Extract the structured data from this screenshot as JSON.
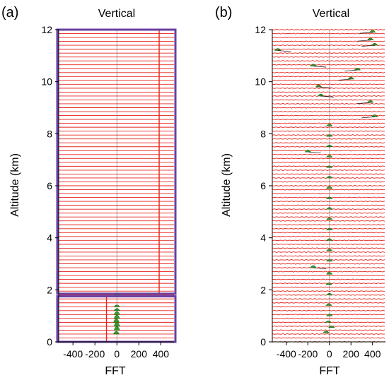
{
  "chart_data": [
    {
      "type": "line",
      "panel_label": "(a)",
      "title": "Vertical",
      "xlabel": "FFT",
      "ylabel": "Altitude (km)",
      "xlim": [
        -530,
        520
      ],
      "ylim": [
        0,
        12
      ],
      "x_ticks": [
        -400,
        -200,
        0,
        200,
        400
      ],
      "x_tick_labels": [
        "-400",
        "-200",
        "0",
        "200",
        "400"
      ],
      "y_ticks": [
        0,
        2,
        4,
        6,
        8,
        10,
        12
      ],
      "y_tick_labels": [
        "0",
        "2",
        "4",
        "6",
        "8",
        "10",
        "12"
      ],
      "trace_spacing_km": 0.15,
      "highlight_boxes": [
        {
          "label": "upper",
          "alt_range_km": [
            1.85,
            12
          ]
        },
        {
          "label": "lower",
          "alt_range_km": [
            0,
            1.75
          ]
        }
      ],
      "vertical_lines_x": [
        385,
        -95
      ],
      "peaks": [
        {
          "alt": 0.3,
          "x": -5,
          "amp": 22
        },
        {
          "alt": 0.45,
          "x": 0,
          "amp": 30
        },
        {
          "alt": 0.6,
          "x": 0,
          "amp": 34
        },
        {
          "alt": 0.75,
          "x": -5,
          "amp": 30
        },
        {
          "alt": 0.9,
          "x": 0,
          "amp": 28
        },
        {
          "alt": 1.05,
          "x": 0,
          "amp": 24
        },
        {
          "alt": 1.2,
          "x": 0,
          "amp": 18
        },
        {
          "alt": 1.35,
          "x": 0,
          "amp": 14
        },
        {
          "alt": 1.8,
          "x": 0,
          "amp": 8
        }
      ],
      "colors": {
        "trace": "#e8231c",
        "box": "#6a3fa0",
        "peak": "#3a9a2a",
        "center": "#aaaaaa"
      }
    },
    {
      "type": "line",
      "panel_label": "(b)",
      "title": "Vertical",
      "xlabel": "FFT",
      "ylabel": "Altitude (km)",
      "xlim": [
        -530,
        520
      ],
      "ylim": [
        0,
        12
      ],
      "x_ticks": [
        -400,
        -200,
        0,
        200,
        400
      ],
      "x_tick_labels": [
        "-400",
        "-200",
        "0",
        "200",
        "400"
      ],
      "y_ticks": [
        0,
        2,
        4,
        6,
        8,
        10,
        12
      ],
      "y_tick_labels": [
        "0",
        "2",
        "4",
        "6",
        "8",
        "10",
        "12"
      ],
      "trace_spacing_km": 0.15,
      "peaks": [
        {
          "alt": 0.35,
          "x": -30,
          "amp": 14
        },
        {
          "alt": 0.55,
          "x": 20,
          "amp": 14
        },
        {
          "alt": 0.75,
          "x": -10,
          "amp": 12
        },
        {
          "alt": 1.0,
          "x": 0,
          "amp": 14
        },
        {
          "alt": 1.4,
          "x": -5,
          "amp": 14
        },
        {
          "alt": 1.8,
          "x": 0,
          "amp": 14
        },
        {
          "alt": 2.2,
          "x": -5,
          "amp": 14
        },
        {
          "alt": 2.6,
          "x": 0,
          "amp": 16
        },
        {
          "alt": 2.85,
          "x": -150,
          "amp": 18
        },
        {
          "alt": 3.1,
          "x": 0,
          "amp": 14
        },
        {
          "alt": 3.5,
          "x": 0,
          "amp": 14
        },
        {
          "alt": 3.9,
          "x": 0,
          "amp": 14
        },
        {
          "alt": 4.3,
          "x": 0,
          "amp": 14
        },
        {
          "alt": 4.7,
          "x": 0,
          "amp": 14
        },
        {
          "alt": 5.1,
          "x": 0,
          "amp": 14
        },
        {
          "alt": 5.5,
          "x": 0,
          "amp": 14
        },
        {
          "alt": 5.9,
          "x": 0,
          "amp": 14
        },
        {
          "alt": 6.3,
          "x": 0,
          "amp": 14
        },
        {
          "alt": 6.7,
          "x": 0,
          "amp": 14
        },
        {
          "alt": 7.1,
          "x": 0,
          "amp": 14
        },
        {
          "alt": 7.3,
          "x": -200,
          "amp": 16
        },
        {
          "alt": 7.5,
          "x": 0,
          "amp": 14
        },
        {
          "alt": 7.9,
          "x": 0,
          "amp": 14
        },
        {
          "alt": 8.3,
          "x": 0,
          "amp": 14
        },
        {
          "alt": 8.65,
          "x": 420,
          "amp": 16
        },
        {
          "alt": 9.2,
          "x": 380,
          "amp": 16
        },
        {
          "alt": 9.45,
          "x": -80,
          "amp": 16
        },
        {
          "alt": 9.8,
          "x": -100,
          "amp": 16
        },
        {
          "alt": 10.1,
          "x": 200,
          "amp": 16
        },
        {
          "alt": 10.45,
          "x": 260,
          "amp": 16
        },
        {
          "alt": 10.6,
          "x": -150,
          "amp": 16
        },
        {
          "alt": 11.2,
          "x": -480,
          "amp": 16
        },
        {
          "alt": 11.4,
          "x": 420,
          "amp": 16
        },
        {
          "alt": 11.6,
          "x": 380,
          "amp": 16
        },
        {
          "alt": 11.9,
          "x": 400,
          "amp": 16
        }
      ],
      "colors": {
        "trace": "#e8231c",
        "peak": "#3a9a2a",
        "center": "#aaaaaa"
      }
    }
  ]
}
